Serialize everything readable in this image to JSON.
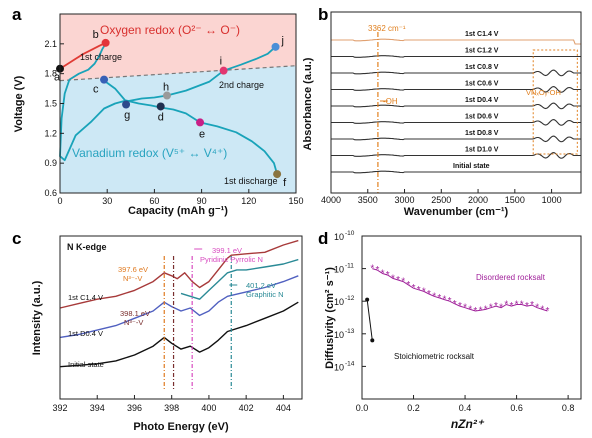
{
  "panels": {
    "a": {
      "label": "a",
      "xlabel": "Capacity (mAh g⁻¹)",
      "ylabel": "Voltage (V)",
      "region_top": "Oxygen redox (O²⁻ ↔ O⁻)",
      "region_bottom": "Vanadium redox (V⁵⁺ ↔ V⁴⁺)",
      "annotations": [
        "1st charge",
        "2nd charge",
        "1st discharge"
      ]
    },
    "b": {
      "label": "b",
      "xlabel": "Wavenumber (cm⁻¹)",
      "ylabel": "Absorbance (a.u.)",
      "marker_top": "3362 cm⁻¹",
      "marker_oh": "-OH",
      "box_label": "VNₓOᵧ-OH"
    },
    "c": {
      "label": "c",
      "xlabel": "Photo Energy (eV)",
      "ylabel": "Intensity (a.u.)",
      "edge": "N K-edge",
      "ann_391": "399.1 eV",
      "ann_391b": "Pyridinic Pyrrolic N",
      "ann_397": "397.6 eV",
      "ann_397b": "N³⁻-V",
      "ann_398": "398.1 eV",
      "ann_398b": "N³⁻-V",
      "ann_401": "401.2 eV",
      "ann_401b": "Graphitic N",
      "trace_c14": "1st C1.4 V",
      "trace_d04": "1st D0.4 V",
      "trace_init": "Initial state"
    },
    "d": {
      "label": "d",
      "xlabel": "nZn²⁺",
      "ylabel": "Diffusivity (cm² s⁻¹)",
      "disordered": "Disordered rocksalt",
      "stoich": "Stoichiometric rocksalt"
    }
  },
  "chart_data": [
    {
      "panel": "a",
      "type": "line",
      "xlim": [
        0,
        150
      ],
      "ylim": [
        0.6,
        2.4
      ],
      "x_ticks": [
        0,
        30,
        60,
        90,
        120,
        150
      ],
      "y_ticks": [
        0.6,
        0.9,
        1.2,
        1.5,
        1.8,
        2.1
      ],
      "points": [
        {
          "label": "a",
          "x": 0,
          "y": 1.85,
          "color": "#111111"
        },
        {
          "label": "b",
          "x": 29,
          "y": 2.11,
          "color": "#e3353b"
        },
        {
          "label": "c",
          "x": 28,
          "y": 1.74,
          "color": "#3860b6"
        },
        {
          "label": "g",
          "x": 42,
          "y": 1.49,
          "color": "#2d4b8c"
        },
        {
          "label": "d",
          "x": 64,
          "y": 1.47,
          "color": "#1f3050"
        },
        {
          "label": "h",
          "x": 68,
          "y": 1.58,
          "color": "#9a9a9a"
        },
        {
          "label": "e",
          "x": 89,
          "y": 1.31,
          "color": "#c81f86"
        },
        {
          "label": "i",
          "x": 104,
          "y": 1.83,
          "color": "#e23670"
        },
        {
          "label": "j",
          "x": 137,
          "y": 2.07,
          "color": "#4a8ed7"
        },
        {
          "label": "f",
          "x": 138,
          "y": 0.79,
          "color": "#8a7440"
        }
      ],
      "dashed_line": {
        "x": [
          0,
          150
        ],
        "y": [
          1.73,
          1.88
        ]
      },
      "curves": [
        {
          "name": "1st charge",
          "color": "#e03b35",
          "x": [
            0,
            5,
            10,
            15,
            20,
            25,
            29
          ],
          "y": [
            1.85,
            1.9,
            1.95,
            2.0,
            2.04,
            2.08,
            2.11
          ]
        },
        {
          "name": "1st discharge",
          "color": "#19a3b9",
          "x": [
            29,
            27,
            25,
            22,
            18,
            12,
            6,
            3,
            1,
            0,
            3,
            10,
            20,
            28,
            35,
            42,
            50,
            58,
            64,
            72,
            80,
            89,
            100,
            112,
            122,
            130,
            136,
            138
          ],
          "y": [
            2.1,
            2.05,
            1.98,
            1.9,
            1.84,
            1.8,
            1.74,
            1.6,
            1.35,
            0.97,
            0.93,
            1.18,
            1.32,
            1.45,
            1.5,
            1.53,
            1.5,
            1.48,
            1.46,
            1.44,
            1.4,
            1.31,
            1.27,
            1.21,
            1.12,
            1.02,
            0.9,
            0.79
          ]
        },
        {
          "name": "2nd charge",
          "color": "#19a3b9",
          "x": [
            28,
            35,
            42,
            52,
            60,
            68,
            80,
            95,
            104,
            115,
            125,
            132,
            137
          ],
          "y": [
            1.73,
            1.65,
            1.52,
            1.55,
            1.56,
            1.58,
            1.63,
            1.72,
            1.83,
            1.89,
            1.95,
            2.0,
            2.07
          ]
        }
      ]
    },
    {
      "panel": "b",
      "type": "line",
      "xlim": [
        4000,
        600
      ],
      "x_ticks": [
        4000,
        3500,
        3000,
        2500,
        2000,
        1500,
        1000
      ],
      "series": [
        {
          "name": "1st C1.4 V",
          "color": "#e0a070",
          "offset": 10
        },
        {
          "name": "1st C1.2 V",
          "color": "#333333",
          "offset": 9
        },
        {
          "name": "1st C0.8 V",
          "color": "#333333",
          "offset": 8
        },
        {
          "name": "1st C0.6 V",
          "color": "#333333",
          "offset": 7
        },
        {
          "name": "1st D0.4 V",
          "color": "#333333",
          "offset": 6
        },
        {
          "name": "1st D0.6 V",
          "color": "#333333",
          "offset": 5
        },
        {
          "name": "1st D0.8 V",
          "color": "#333333",
          "offset": 4
        },
        {
          "name": "1st D1.0 V",
          "color": "#333333",
          "offset": 3
        },
        {
          "name": "Initial state",
          "color": "#333333",
          "offset": 2
        }
      ],
      "vline_x": 3362,
      "box_x": [
        1250,
        650
      ]
    },
    {
      "panel": "c",
      "type": "line",
      "xlim": [
        392,
        405
      ],
      "x_ticks": [
        392,
        394,
        396,
        398,
        400,
        402,
        404
      ],
      "series": [
        {
          "name": "1st C1.4 V",
          "color": "#a73a3a",
          "x": [
            392,
            393,
            394,
            395,
            396,
            397,
            397.6,
            398,
            398.3,
            398.7,
            399.1,
            399.5,
            400,
            400.5,
            401,
            401.2,
            402,
            403,
            404,
            404.8
          ],
          "y": [
            0.62,
            0.65,
            0.68,
            0.7,
            0.74,
            0.8,
            0.86,
            0.84,
            0.82,
            0.86,
            0.8,
            0.76,
            0.8,
            0.88,
            0.96,
            0.98,
            0.99,
            1.0,
            1.05,
            1.08
          ]
        },
        {
          "name": "Graphitic N trace",
          "color": "#2a8a96",
          "x": [
            398.5,
            399,
            399.5,
            400,
            400.5,
            401,
            401.5,
            402,
            403,
            404,
            404.8
          ],
          "y": [
            0.72,
            0.7,
            0.68,
            0.74,
            0.8,
            0.86,
            0.88,
            0.88,
            0.9,
            0.92,
            0.95
          ]
        },
        {
          "name": "1st D0.4 V",
          "color": "#5060c0",
          "x": [
            392,
            393,
            394,
            395,
            396,
            397,
            397.6,
            398,
            398.5,
            399,
            399.5,
            400,
            400.5,
            401,
            402,
            403,
            404,
            404.8
          ],
          "y": [
            0.42,
            0.44,
            0.47,
            0.5,
            0.55,
            0.6,
            0.66,
            0.63,
            0.6,
            0.62,
            0.57,
            0.6,
            0.66,
            0.7,
            0.73,
            0.76,
            0.8,
            0.84
          ]
        },
        {
          "name": "Initial state",
          "color": "#111111",
          "x": [
            392,
            393,
            394,
            395,
            396,
            397,
            397.6,
            398,
            398.5,
            399,
            399.5,
            400,
            400.5,
            401,
            402,
            403,
            404,
            404.8
          ],
          "y": [
            0.22,
            0.23,
            0.24,
            0.26,
            0.3,
            0.36,
            0.42,
            0.38,
            0.34,
            0.36,
            0.32,
            0.35,
            0.4,
            0.46,
            0.5,
            0.55,
            0.6,
            0.66
          ]
        }
      ],
      "vlines": [
        {
          "x": 397.6,
          "color": "#e07a20"
        },
        {
          "x": 398.1,
          "color": "#7a2e2e"
        },
        {
          "x": 399.1,
          "color": "#d84cc0"
        },
        {
          "x": 401.2,
          "color": "#2a8a96"
        }
      ]
    },
    {
      "panel": "d",
      "type": "scatter",
      "xlim": [
        0,
        0.85
      ],
      "x_ticks": [
        0,
        0.2,
        0.4,
        0.6,
        0.8
      ],
      "y_log": true,
      "ylim_exp": [
        -15,
        -10
      ],
      "y_ticks_exp": [
        -10,
        -11,
        -12,
        -13,
        -14
      ],
      "series": [
        {
          "name": "Disordered rocksalt",
          "color": "#a0209a",
          "x": [
            0.04,
            0.06,
            0.08,
            0.1,
            0.12,
            0.14,
            0.16,
            0.18,
            0.2,
            0.22,
            0.24,
            0.26,
            0.28,
            0.3,
            0.32,
            0.34,
            0.36,
            0.38,
            0.4,
            0.42,
            0.44,
            0.46,
            0.48,
            0.5,
            0.52,
            0.54,
            0.56,
            0.58,
            0.6,
            0.62,
            0.64,
            0.66,
            0.68,
            0.7,
            0.72
          ],
          "y_exp": [
            -11.0,
            -11.05,
            -11.15,
            -11.2,
            -11.3,
            -11.35,
            -11.4,
            -11.5,
            -11.6,
            -11.65,
            -11.7,
            -11.78,
            -11.85,
            -11.9,
            -11.95,
            -12.0,
            -12.08,
            -12.15,
            -12.2,
            -12.25,
            -12.3,
            -12.28,
            -12.25,
            -12.2,
            -12.15,
            -12.2,
            -12.1,
            -12.15,
            -12.1,
            -12.1,
            -12.15,
            -12.12,
            -12.2,
            -12.25,
            -12.3
          ]
        },
        {
          "name": "Stoichiometric rocksalt",
          "color": "#111111",
          "x": [
            0.02,
            0.04
          ],
          "y_exp": [
            -11.95,
            -13.2
          ]
        }
      ]
    }
  ]
}
